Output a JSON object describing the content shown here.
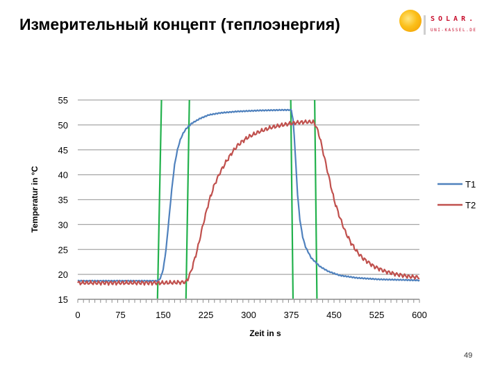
{
  "slide": {
    "title": "Измерительный концепт (теплоэнергия)",
    "page_number": "49"
  },
  "logo": {
    "word": "SOLAR.",
    "subtitle": "UNI-KASSEL.DE"
  },
  "chart_data": {
    "type": "line",
    "title": "",
    "xlabel": "Zeit in s",
    "ylabel": "Temperatur in °C",
    "xlim": [
      0,
      600
    ],
    "ylim": [
      15,
      55
    ],
    "xticks": [
      0,
      75,
      150,
      225,
      300,
      375,
      450,
      525,
      600
    ],
    "yticks": [
      15,
      20,
      25,
      30,
      35,
      40,
      45,
      50,
      55
    ],
    "grid": "horizontal",
    "legend": "right",
    "series": [
      {
        "name": "T1",
        "color": "#4f81bd",
        "x": [
          0,
          60,
          120,
          140,
          145,
          150,
          155,
          160,
          165,
          170,
          175,
          180,
          185,
          190,
          200,
          215,
          230,
          250,
          280,
          320,
          360,
          375,
          378,
          380,
          383,
          386,
          390,
          395,
          400,
          410,
          425,
          440,
          460,
          490,
          530,
          570,
          600
        ],
        "y": [
          18.7,
          18.7,
          18.7,
          18.7,
          19.2,
          21,
          25,
          31,
          37,
          42,
          45,
          47,
          48.3,
          49.2,
          50.3,
          51.3,
          52,
          52.4,
          52.7,
          52.9,
          53,
          53,
          51,
          48,
          42,
          36,
          31,
          27.5,
          25.5,
          23.3,
          21.6,
          20.6,
          19.8,
          19.3,
          19,
          18.9,
          18.8
        ]
      },
      {
        "name": "T2",
        "color": "#c0504d",
        "x": [
          0,
          60,
          120,
          150,
          180,
          190,
          195,
          200,
          210,
          220,
          230,
          240,
          250,
          260,
          270,
          280,
          290,
          300,
          320,
          340,
          360,
          380,
          400,
          410,
          415,
          420,
          425,
          430,
          440,
          450,
          460,
          470,
          480,
          490,
          500,
          520,
          540,
          560,
          580,
          600
        ],
        "y": [
          18.3,
          18.3,
          18.3,
          18.3,
          18.4,
          18.5,
          19.5,
          21,
          25,
          30,
          34.5,
          38,
          40.5,
          42.5,
          44.3,
          45.8,
          46.8,
          47.6,
          48.7,
          49.5,
          50,
          50.4,
          50.6,
          50.6,
          50.5,
          49.3,
          47.5,
          45,
          40,
          35,
          31.5,
          28.5,
          26.3,
          24.6,
          23.3,
          21.6,
          20.6,
          20,
          19.6,
          19.4
        ]
      }
    ],
    "markers": [
      {
        "color": "#22b14c",
        "x": [
          147,
          140
        ]
      },
      {
        "color": "#22b14c",
        "x": [
          196,
          190
        ]
      },
      {
        "color": "#22b14c",
        "x": [
          374,
          378
        ]
      },
      {
        "color": "#22b14c",
        "x": [
          416,
          420
        ]
      }
    ]
  }
}
